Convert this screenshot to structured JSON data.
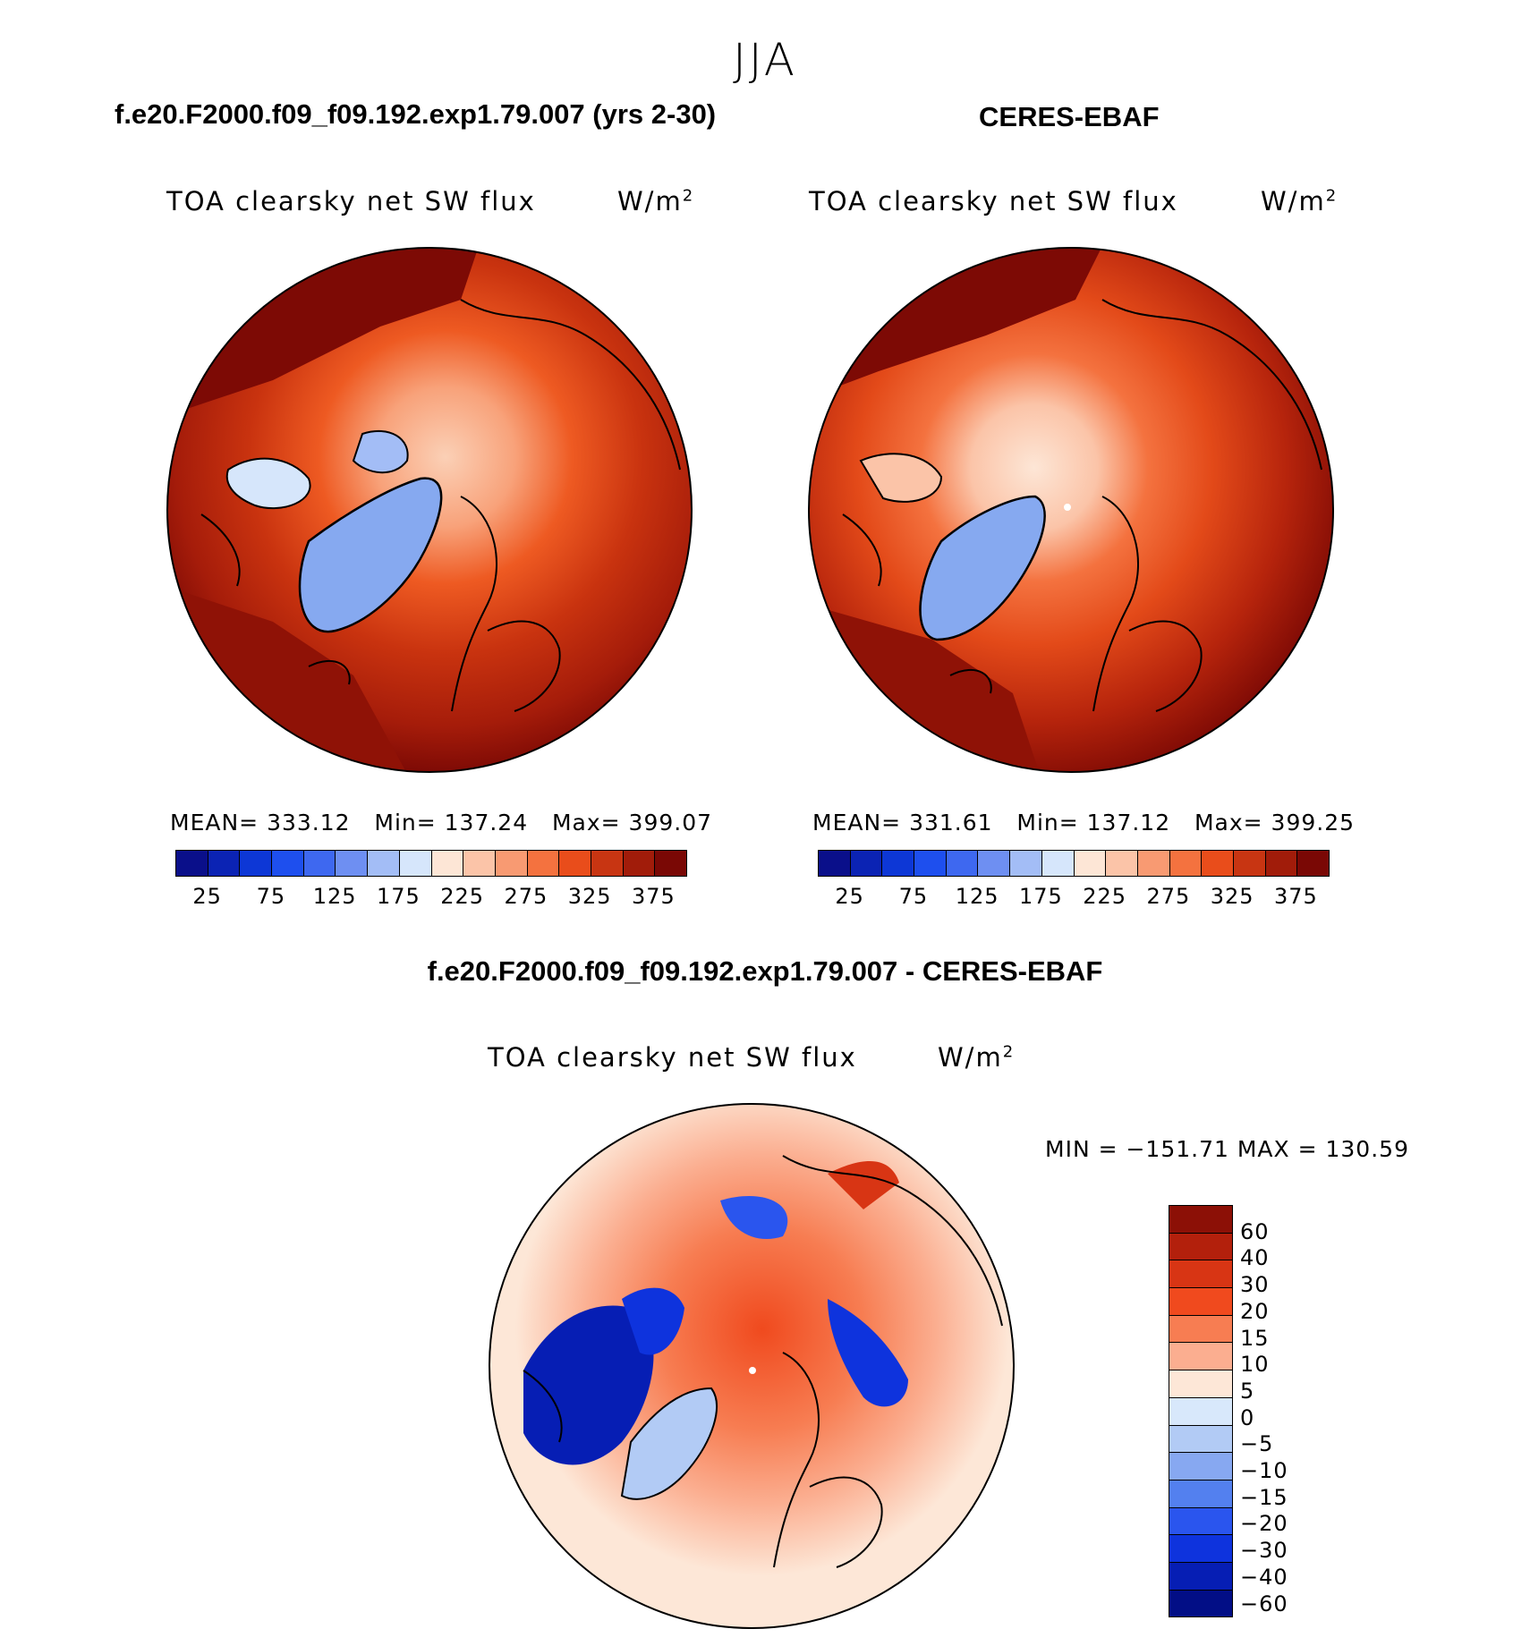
{
  "season": "JJA",
  "panels": {
    "model": {
      "title": "f.e20.F2000.f09_f09.192.exp1.79.007 (yrs 2-30)",
      "variable": "TOA clearsky net SW flux",
      "units": "W/m",
      "units_sup": "2",
      "stats": {
        "mean": "MEAN= 333.12",
        "min": "Min= 137.24",
        "max": "Max= 399.07"
      }
    },
    "obs": {
      "title": "CERES-EBAF",
      "variable": "TOA clearsky net SW flux",
      "units": "W/m",
      "units_sup": "2",
      "stats": {
        "mean": "MEAN= 331.61",
        "min": "Min= 137.12",
        "max": "Max= 399.25"
      }
    },
    "diff": {
      "title": "f.e20.F2000.f09_f09.192.exp1.79.007 - CERES-EBAF",
      "variable": "TOA clearsky net SW flux",
      "units": "W/m",
      "units_sup": "2",
      "minmax": "MIN = −151.71 MAX = 130.59"
    }
  },
  "abs_colorbar": {
    "colors": [
      "#0a0f8a",
      "#0b23b4",
      "#0d37d6",
      "#1e4fee",
      "#3e68f0",
      "#6e8ff2",
      "#a3bdf6",
      "#d6e6fb",
      "#fde6d6",
      "#fbc4a8",
      "#f89a72",
      "#f4723f",
      "#e94d1b",
      "#c83512",
      "#a11c0a",
      "#7a0805"
    ],
    "ticks": [
      "25",
      "75",
      "125",
      "175",
      "225",
      "275",
      "325",
      "375"
    ]
  },
  "diff_colorbar": {
    "colors_top_to_bottom": [
      "#8c1006",
      "#b3200c",
      "#d83514",
      "#f04a1e",
      "#f77d52",
      "#fbae90",
      "#fde7d7",
      "#d8e8fb",
      "#b2cbf5",
      "#87a8f1",
      "#5380ef",
      "#2a55ee",
      "#0e33dd",
      "#061eb4",
      "#020e86"
    ],
    "ticks": [
      "60",
      "40",
      "30",
      "20",
      "15",
      "10",
      "5",
      "0",
      "−5",
      "−10",
      "−15",
      "−20",
      "−30",
      "−40",
      "−60"
    ]
  }
}
